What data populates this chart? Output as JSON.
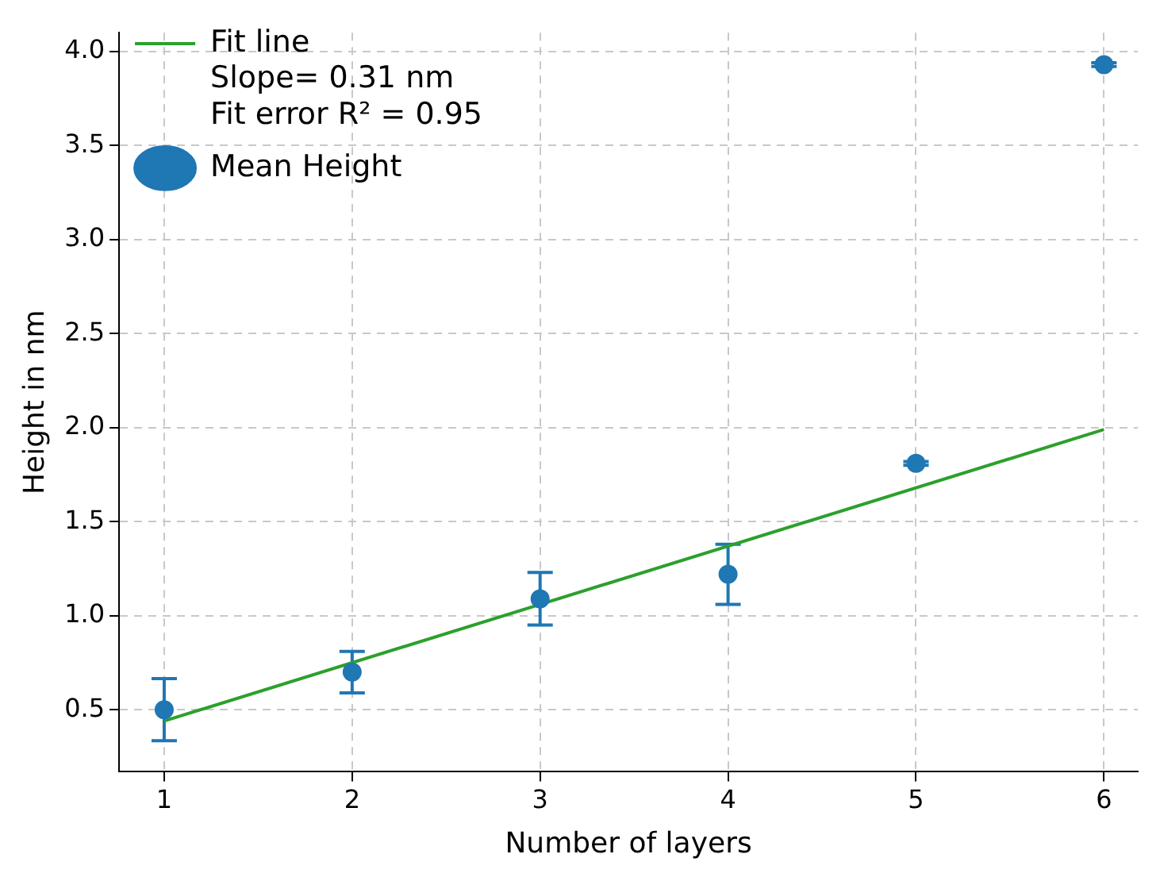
{
  "chart_data": {
    "type": "scatter",
    "xlabel": "Number of layers",
    "ylabel": "Height in nm",
    "xlim": [
      0.76,
      6.18
    ],
    "xticks": [
      1,
      2,
      3,
      4,
      5,
      6
    ],
    "ylim": [
      0.17,
      4.1
    ],
    "yticks": [
      {
        "value": 0.5,
        "label": "0.5"
      },
      {
        "value": 1,
        "label": "1.0"
      },
      {
        "value": 1.5,
        "label": "1.5"
      },
      {
        "value": 2,
        "label": "2.0"
      },
      {
        "value": 2.5,
        "label": "2.5"
      },
      {
        "value": 3,
        "label": "3.0"
      },
      {
        "value": 3.5,
        "label": "3.5"
      },
      {
        "value": 4,
        "label": "4.0"
      }
    ],
    "grid": true,
    "legend": "top left",
    "series": [
      {
        "name": "Fit line\nSlope= 0.31 nm\nFit error R² = 0.95",
        "type": "line",
        "color": "#2ca02c",
        "x": [
          1,
          6
        ],
        "values": [
          0.44,
          1.99
        ],
        "marker": "none",
        "line_style": "solid"
      },
      {
        "name": "Mean Height",
        "type": "scatter",
        "color": "#1f77b4",
        "x": [
          1,
          2,
          3,
          4,
          5,
          6
        ],
        "values": [
          0.5,
          0.7,
          1.09,
          1.22,
          1.81,
          3.93
        ],
        "errors": [
          0.165,
          0.11,
          0.14,
          0.16,
          0.01,
          0.01
        ],
        "marker": "circle"
      }
    ]
  }
}
